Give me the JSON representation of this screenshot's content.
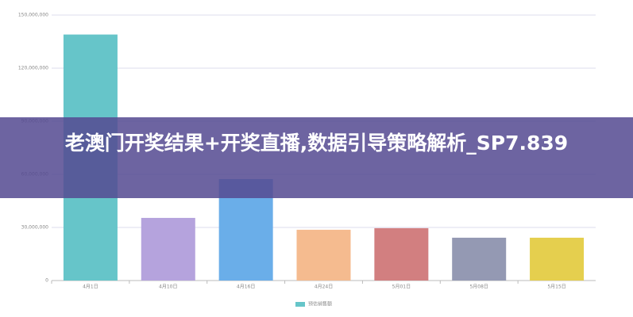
{
  "chart_data": {
    "type": "bar",
    "categories": [
      "4月1日",
      "4月10日",
      "4月16日",
      "4月24日",
      "5月01日",
      "5月08日",
      "5月15日"
    ],
    "series": [
      {
        "name": "预估销售额",
        "color": "#66c5c9",
        "values": [
          139000000,
          35400000,
          57300000,
          28700000,
          29600000,
          24200000,
          24200000
        ]
      }
    ],
    "colors": [
      "#66c5c9",
      "#b5a3dd",
      "#6aaee9",
      "#f5bb8f",
      "#d27f80",
      "#9499b3",
      "#e5cf4e"
    ],
    "ylim": [
      0,
      150000000
    ],
    "yticks": [
      0,
      {
        "value": 30000000,
        "label": "30,000,000"
      },
      {
        "value": 60000000,
        "label": "60,000,000"
      },
      {
        "value": 90000000,
        "label": "90,000,000"
      },
      {
        "value": 120000000,
        "label": "120,000,000"
      },
      {
        "value": 150000000,
        "label": "150,000,000"
      }
    ],
    "grid": true
  },
  "banner": {
    "text": "老澳门开奖结果+开奖直播,数据引导策略解析_SP7.839"
  }
}
